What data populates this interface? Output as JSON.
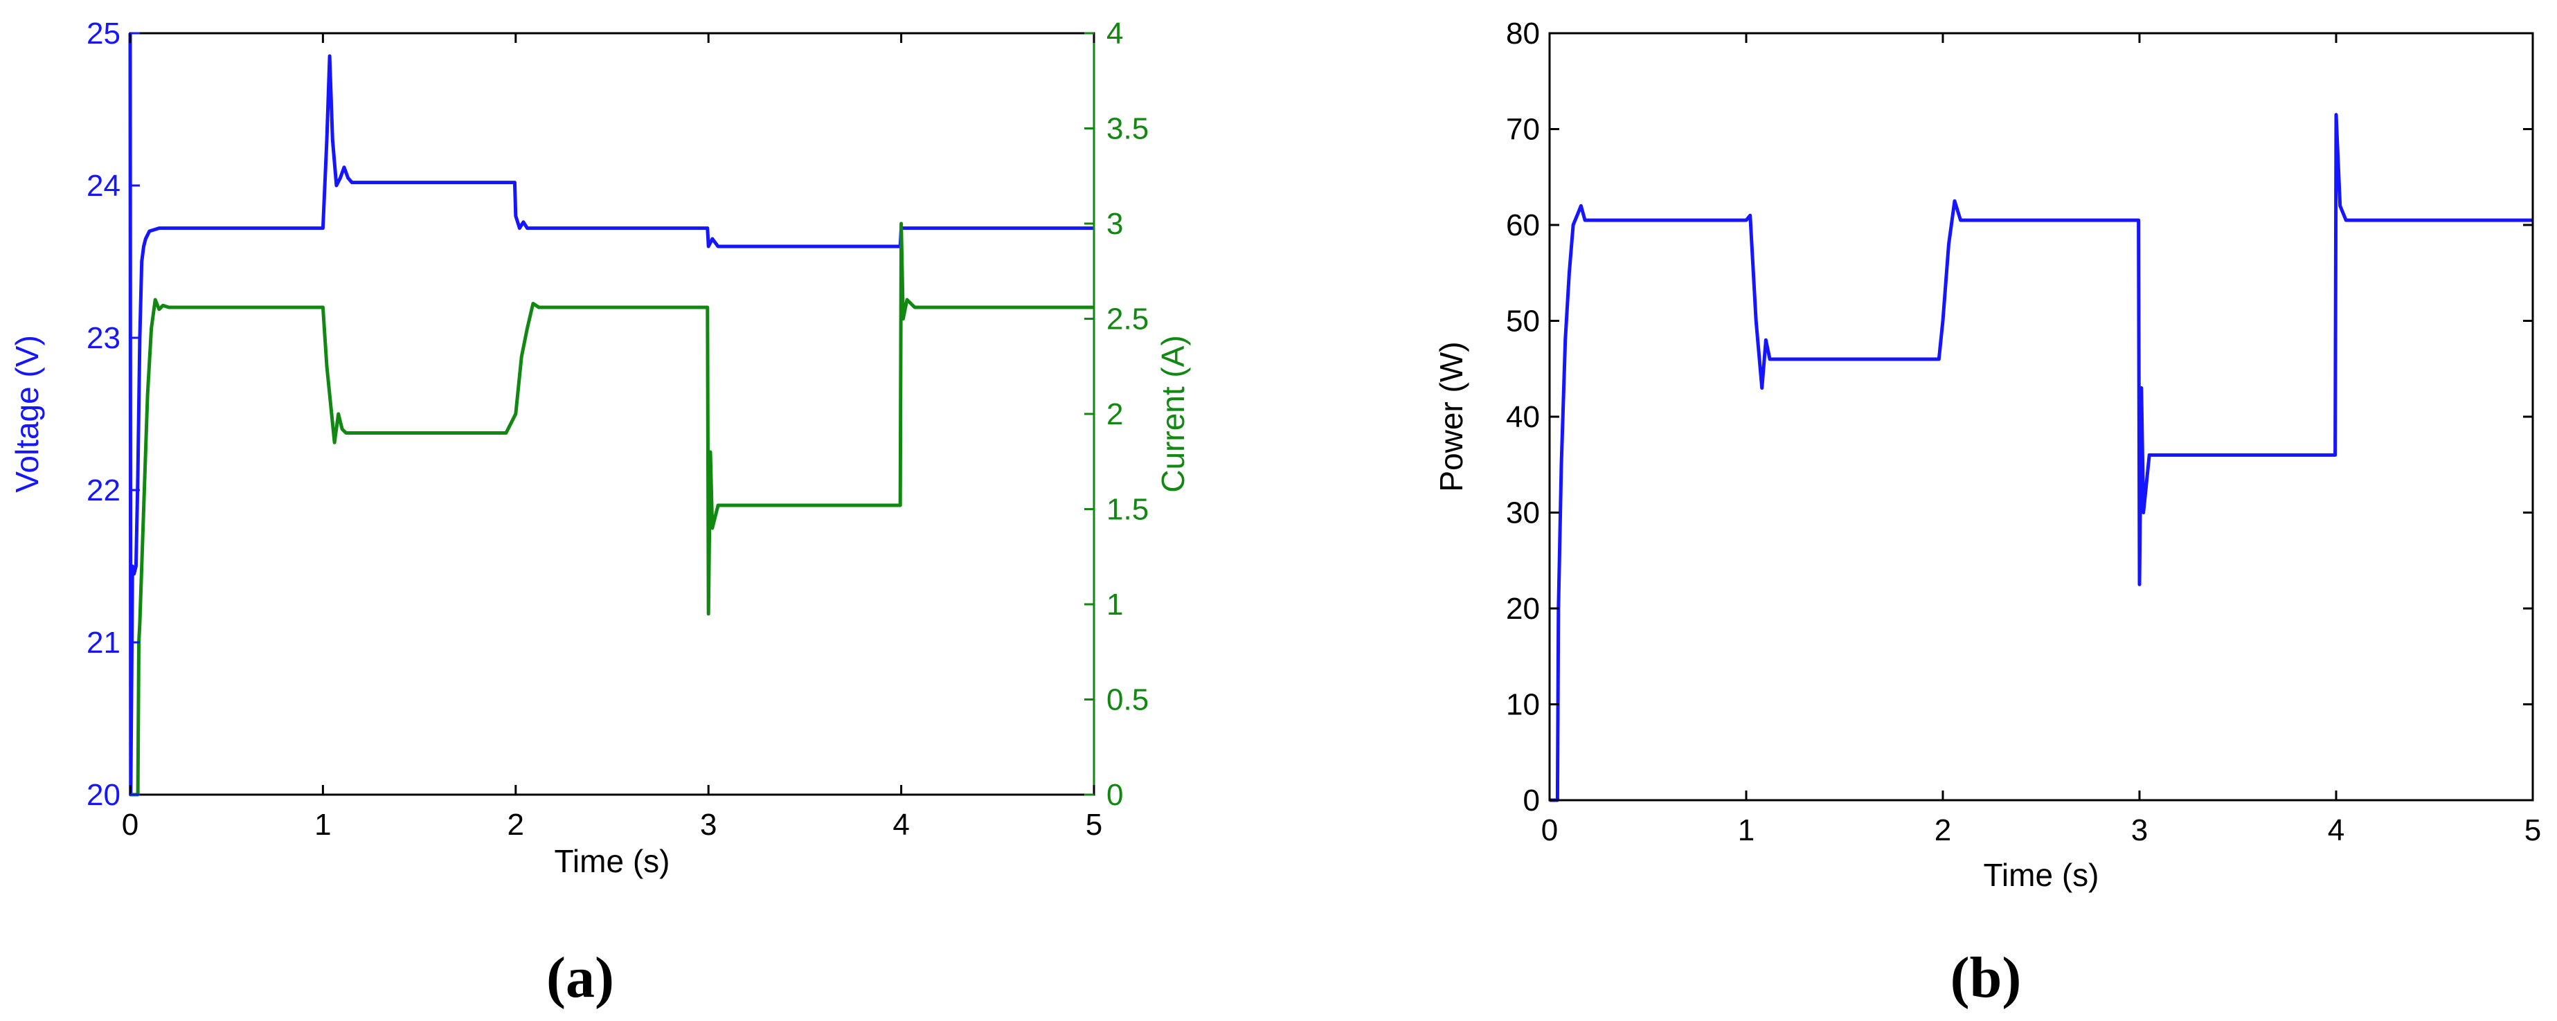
{
  "colors": {
    "voltage": "#1515ff",
    "current": "#118811",
    "power": "#1515ff",
    "axis": "#000000"
  },
  "panels": {
    "a_label": "(a)",
    "b_label": "(b)"
  },
  "chart_data": [
    {
      "id": "a",
      "type": "line",
      "title": "",
      "xlabel": "Time (s)",
      "ylabel": "Voltage (V)",
      "y2label": "Current (A)",
      "xlim": [
        0,
        5
      ],
      "ylim": [
        20,
        25
      ],
      "y2lim": [
        0,
        4
      ],
      "xticks": [
        0,
        1,
        2,
        3,
        4,
        5
      ],
      "yticks": [
        20,
        21,
        22,
        23,
        24,
        25
      ],
      "y2ticks": [
        0,
        0.5,
        1,
        1.5,
        2,
        2.5,
        3,
        3.5,
        4
      ],
      "grid": false,
      "series": [
        {
          "axis": "left",
          "color": "#1515ff",
          "x": [
            0,
            0.003,
            0.008,
            0.012,
            0.02,
            0.03,
            0.04,
            0.05,
            0.06,
            0.07,
            0.08,
            0.1,
            0.15,
            0.3,
            1.0,
            1.02,
            1.035,
            1.05,
            1.07,
            1.09,
            1.11,
            1.13,
            1.15,
            1.2,
            1.995,
            2.0,
            2.02,
            2.04,
            2.06,
            2.1,
            2.15,
            2.995,
            3.0,
            3.02,
            3.05,
            3.1,
            3.995,
            4.0,
            4.05,
            5.0
          ],
          "y": [
            25,
            20,
            20.8,
            21.5,
            21.45,
            21.5,
            22.1,
            23.0,
            23.5,
            23.6,
            23.65,
            23.7,
            23.72,
            23.72,
            23.72,
            24.3,
            24.85,
            24.3,
            24.0,
            24.05,
            24.12,
            24.05,
            24.02,
            24.02,
            24.02,
            23.8,
            23.72,
            23.76,
            23.72,
            23.72,
            23.72,
            23.72,
            23.6,
            23.65,
            23.6,
            23.6,
            23.6,
            23.72,
            23.72,
            23.72
          ]
        },
        {
          "axis": "right",
          "color": "#118811",
          "x": [
            0,
            0.04,
            0.045,
            0.05,
            0.07,
            0.09,
            0.11,
            0.13,
            0.15,
            0.17,
            0.2,
            0.3,
            1.0,
            1.02,
            1.06,
            1.08,
            1.1,
            1.12,
            1.15,
            1.2,
            1.95,
            2.0,
            2.03,
            2.06,
            2.09,
            2.12,
            2.15,
            2.995,
            3.0,
            3.01,
            3.02,
            3.05,
            3.1,
            3.995,
            4.0,
            4.01,
            4.03,
            4.07,
            5.0
          ],
          "y": [
            0,
            0,
            0.8,
            0.9,
            1.5,
            2.1,
            2.45,
            2.6,
            2.55,
            2.57,
            2.56,
            2.56,
            2.56,
            2.25,
            1.85,
            2.0,
            1.92,
            1.9,
            1.9,
            1.9,
            1.9,
            2.0,
            2.3,
            2.45,
            2.58,
            2.56,
            2.56,
            2.56,
            0.95,
            1.8,
            1.4,
            1.52,
            1.52,
            1.52,
            3.0,
            2.5,
            2.6,
            2.56,
            2.56
          ]
        }
      ]
    },
    {
      "id": "b",
      "type": "line",
      "title": "",
      "xlabel": "Time (s)",
      "ylabel": "Power (W)",
      "xlim": [
        0,
        5
      ],
      "ylim": [
        0,
        80
      ],
      "xticks": [
        0,
        1,
        2,
        3,
        4,
        5
      ],
      "yticks": [
        0,
        10,
        20,
        30,
        40,
        50,
        60,
        70,
        80
      ],
      "grid": false,
      "series": [
        {
          "axis": "left",
          "color": "#1515ff",
          "x": [
            0,
            0.04,
            0.045,
            0.06,
            0.08,
            0.1,
            0.12,
            0.14,
            0.16,
            0.18,
            0.2,
            0.3,
            1.0,
            1.02,
            1.05,
            1.08,
            1.1,
            1.12,
            1.15,
            1.2,
            1.98,
            2.0,
            2.03,
            2.06,
            2.09,
            2.12,
            2.15,
            2.995,
            3.0,
            3.01,
            3.02,
            3.05,
            3.1,
            3.995,
            4.0,
            4.02,
            4.05,
            5.0
          ],
          "y": [
            0,
            0,
            20,
            35,
            48,
            55,
            60,
            61,
            62,
            60.5,
            60.5,
            60.5,
            60.5,
            61,
            50,
            43,
            48,
            46,
            46,
            46,
            46,
            50,
            58,
            62.5,
            60.5,
            60.5,
            60.5,
            60.5,
            22.5,
            43,
            30,
            36,
            36,
            36,
            71.5,
            62,
            60.5,
            60.5
          ]
        }
      ]
    }
  ]
}
